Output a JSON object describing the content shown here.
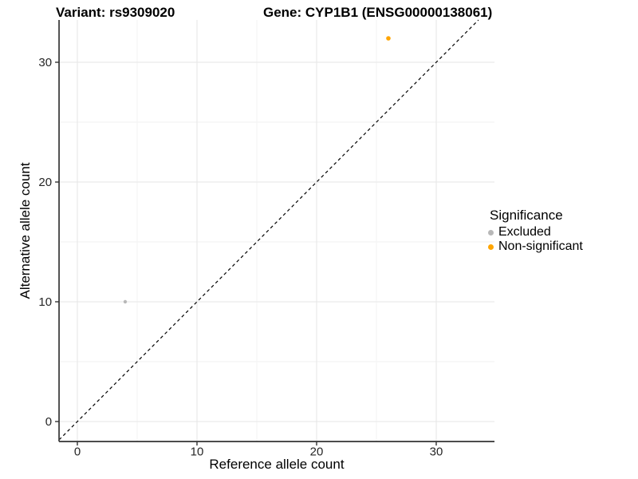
{
  "chart_data": {
    "type": "scatter",
    "titles": {
      "left": "Variant: rs9309020",
      "right": "Gene: CYP1B1 (ENSG00000138061)"
    },
    "xlabel": "Reference allele count",
    "ylabel": "Alternative allele count",
    "x_ticks": [
      0,
      10,
      20,
      30
    ],
    "y_ticks": [
      0,
      10,
      20,
      30
    ],
    "x_minor_ticks": [
      5,
      15,
      25
    ],
    "y_minor_ticks": [
      5,
      15,
      25
    ],
    "xlim": [
      -1.53,
      34.87
    ],
    "ylim": [
      -1.67,
      33.53
    ],
    "grid": "major and minor, light gray on white",
    "identity_line": {
      "equation": "y = x",
      "style": "dashed",
      "color": "#000000"
    },
    "series": [
      {
        "name": "Excluded",
        "color": "#b8b8b8",
        "point_radius": 2.2,
        "points": [
          {
            "x": 4,
            "y": 10
          }
        ]
      },
      {
        "name": "Non-significant",
        "color": "#ffa500",
        "point_radius": 2.8,
        "points": [
          {
            "x": 26,
            "y": 32
          }
        ]
      }
    ],
    "legend": {
      "title": "Significance",
      "position": "right"
    }
  },
  "style": {
    "grid_major_color": "#e6e6e6",
    "grid_minor_color": "#f2f2f2",
    "axis_line_color": "#404040",
    "tick_color": "#333333",
    "tick_label_color": "#262626"
  }
}
